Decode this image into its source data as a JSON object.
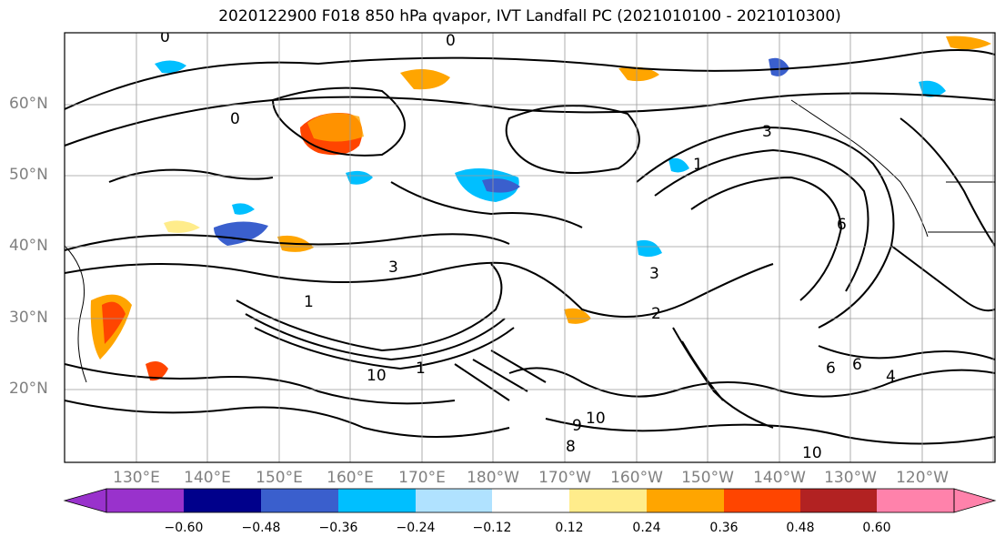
{
  "title": "2020122900 F018 850 hPa qvapor, IVT Landfall PC (2021010100 - 2021010300)",
  "lat_labels": [
    "60°N",
    "50°N",
    "40°N",
    "30°N",
    "20°N"
  ],
  "lon_labels": [
    "130°E",
    "140°E",
    "150°E",
    "160°E",
    "170°E",
    "180°W",
    "170°W",
    "160°W",
    "150°W",
    "140°W",
    "130°W",
    "120°W"
  ],
  "contour_labels": [
    "0",
    "0",
    "0",
    "3",
    "1",
    "3",
    "1",
    "3",
    "2",
    "6",
    "10",
    "1",
    "6",
    "10",
    "9",
    "8",
    "4",
    "6",
    "10"
  ],
  "colorbar": {
    "colors": [
      "#9932CC",
      "#00008B",
      "#3A5FCD",
      "#00BFFF",
      "#B0E2FF",
      "#FFFFFF",
      "#FFEC8B",
      "#FFA500",
      "#FF4500",
      "#B22222",
      "#FF82AB"
    ],
    "tick_labels": [
      "−0.60",
      "−0.48",
      "−0.36",
      "−0.24",
      "−0.12",
      "0.12",
      "0.24",
      "0.36",
      "0.48",
      "0.60"
    ]
  }
}
